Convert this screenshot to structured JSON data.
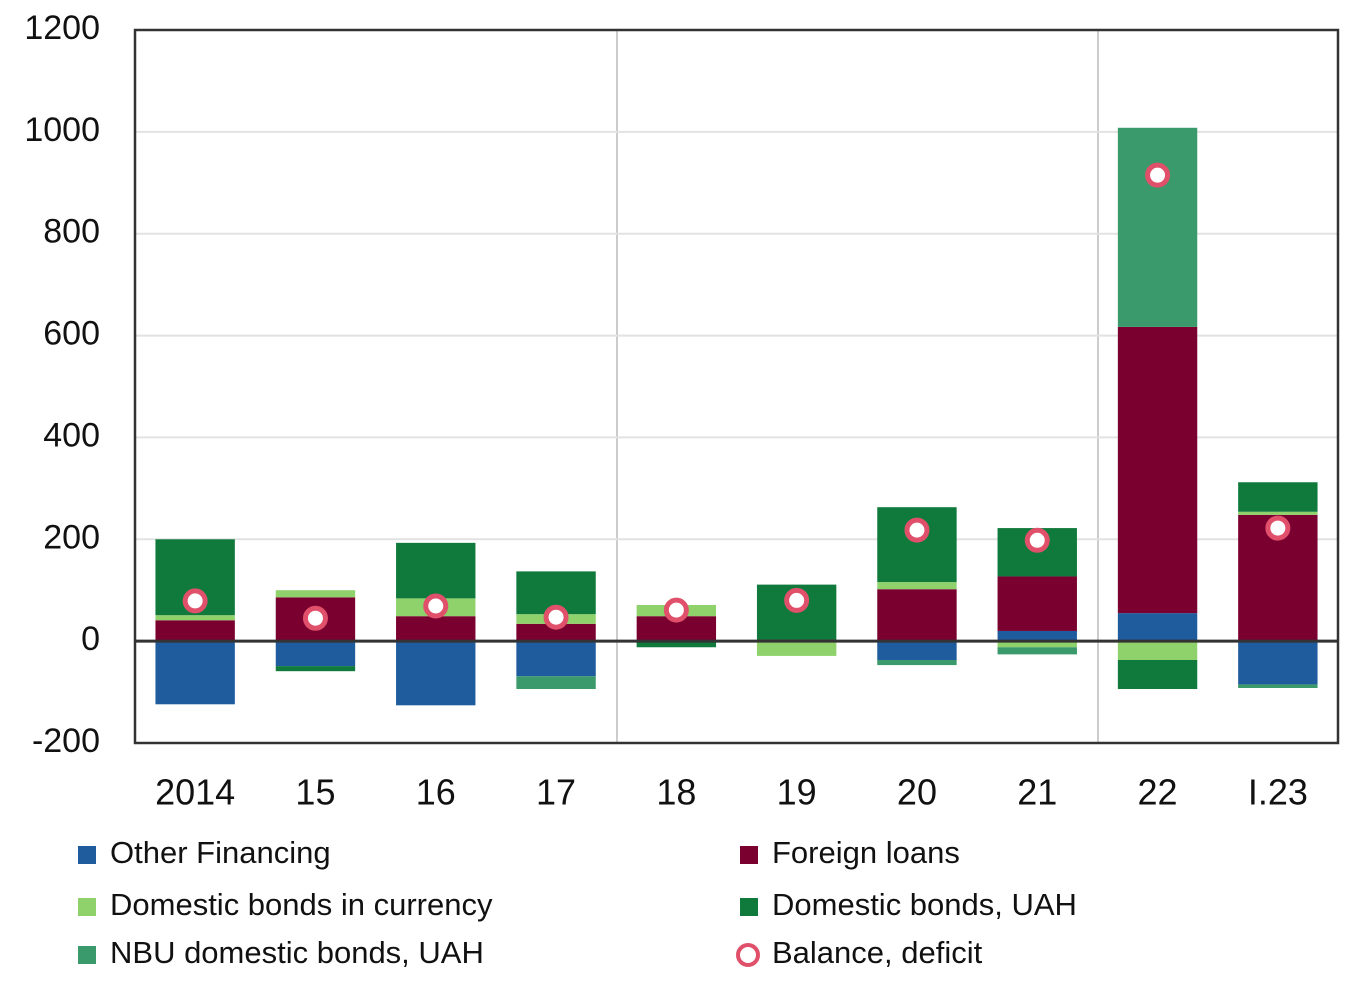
{
  "chart_data": {
    "type": "bar",
    "stacked": true,
    "categories": [
      "2014",
      "15",
      "16",
      "17",
      "18",
      "19",
      "20",
      "21",
      "22",
      "I.23"
    ],
    "series": [
      {
        "name": "Other Financing",
        "color": "#1f5c9e",
        "values": [
          -124,
          -49,
          -126,
          -69,
          0,
          0,
          -37,
          20,
          55,
          -85
        ]
      },
      {
        "name": "Foreign loans",
        "color": "#7a0030",
        "values": [
          41,
          86,
          49,
          34,
          49,
          3,
          102,
          107,
          562,
          248
        ]
      },
      {
        "name": "Domestic bonds in currency",
        "color": "#8fd16a",
        "values": [
          10,
          14,
          35,
          19,
          22,
          -29,
          14,
          -12,
          -37,
          6
        ]
      },
      {
        "name": "Domestic bonds, UAH",
        "color": "#0f7a3c",
        "values": [
          149,
          -10,
          109,
          84,
          -12,
          108,
          147,
          95,
          -57,
          58
        ]
      },
      {
        "name": "NBU domestic bonds, UAH",
        "color": "#3b9a6b",
        "values": [
          0,
          0,
          0,
          -25,
          0,
          0,
          -10,
          -14,
          391,
          -7
        ]
      }
    ],
    "balance": {
      "name": "Balance, deficit",
      "color": "#e0506a",
      "values": [
        79,
        45,
        69,
        47,
        61,
        80,
        218,
        198,
        915,
        222
      ]
    },
    "ylim": [
      -200,
      1200
    ],
    "yticks": [
      -200,
      0,
      200,
      400,
      600,
      800,
      1000,
      1200
    ],
    "grid": true
  }
}
